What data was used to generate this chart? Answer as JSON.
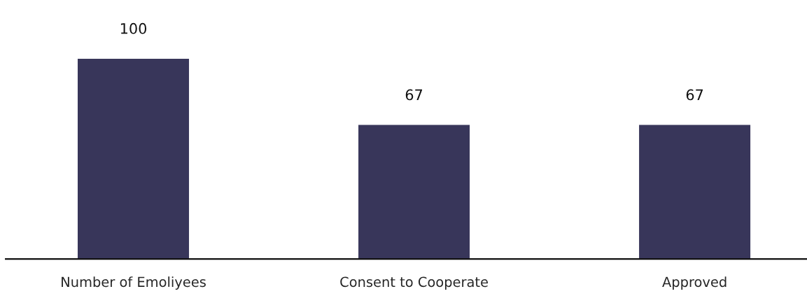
{
  "chart_data": {
    "type": "bar",
    "categories": [
      "Number of Emoliyees",
      "Consent to Cooperate",
      "Approved"
    ],
    "values": [
      100,
      67,
      67
    ],
    "color": "#38365a",
    "data_labels": true,
    "grid": false,
    "legend": false
  }
}
